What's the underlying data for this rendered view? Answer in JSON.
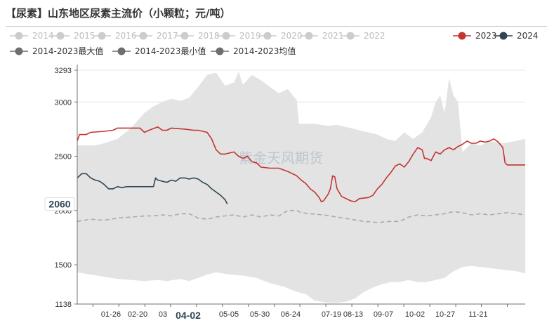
{
  "title": "【尿素】山东地区尿素主流价（小颗粒；元/吨）",
  "watermark": "紫金天风期货",
  "chart_data": {
    "type": "line",
    "title": "【尿素】山东地区尿素主流价（小颗粒；元/吨）",
    "ylim": [
      1138,
      3293
    ],
    "yticks": [
      1138,
      1500,
      2000,
      2500,
      3000,
      3293
    ],
    "xticks": [
      "01-26",
      "02-20",
      "03",
      "04-02",
      "05-05",
      "05-30",
      "06-24",
      "07-19",
      "08-13",
      "09-07",
      "10-02",
      "10-27",
      "11-21"
    ],
    "x_tick_pos": [
      0.035,
      0.093,
      0.151,
      0.208,
      0.266,
      0.324,
      0.382,
      0.44,
      0.497,
      0.555,
      0.613,
      0.671,
      0.729,
      0.787,
      0.845,
      0.902,
      0.96
    ],
    "highlight_tick": "04-02",
    "highlight_value": "2060",
    "legend": {
      "inactive_color": "#cccccc",
      "items": [
        {
          "label": "2014",
          "color": "#cccccc",
          "active": false
        },
        {
          "label": "2015",
          "color": "#cccccc",
          "active": false
        },
        {
          "label": "2016",
          "color": "#cccccc",
          "active": false
        },
        {
          "label": "2017",
          "color": "#cccccc",
          "active": false
        },
        {
          "label": "2018",
          "color": "#cccccc",
          "active": false
        },
        {
          "label": "2019",
          "color": "#cccccc",
          "active": false
        },
        {
          "label": "2020",
          "color": "#cccccc",
          "active": false
        },
        {
          "label": "2021",
          "color": "#cccccc",
          "active": false
        },
        {
          "label": "2022",
          "color": "#cccccc",
          "active": false
        },
        {
          "label": "2023",
          "color": "#c23531",
          "active": true
        },
        {
          "label": "2024",
          "color": "#2f4554",
          "active": true
        },
        {
          "label": "2014-2023最大值",
          "color": "#6e6e6e",
          "active": true
        },
        {
          "label": "2014-2023最小值",
          "color": "#6e6e6e",
          "active": true
        },
        {
          "label": "2014-2023均值",
          "color": "#6e6e6e",
          "active": true
        }
      ]
    },
    "band": {
      "fill": "#e3e3e3",
      "max": [
        [
          0,
          2600
        ],
        [
          0.04,
          2600
        ],
        [
          0.06,
          2620
        ],
        [
          0.09,
          2660
        ],
        [
          0.12,
          2760
        ],
        [
          0.15,
          2900
        ],
        [
          0.17,
          2960
        ],
        [
          0.19,
          3000
        ],
        [
          0.21,
          3030
        ],
        [
          0.23,
          3010
        ],
        [
          0.25,
          3040
        ],
        [
          0.27,
          3140
        ],
        [
          0.29,
          3250
        ],
        [
          0.31,
          3270
        ],
        [
          0.33,
          3150
        ],
        [
          0.35,
          3180
        ],
        [
          0.36,
          3280
        ],
        [
          0.37,
          3160
        ],
        [
          0.39,
          3250
        ],
        [
          0.41,
          3200
        ],
        [
          0.43,
          3140
        ],
        [
          0.45,
          3080
        ],
        [
          0.47,
          3120
        ],
        [
          0.485,
          3040
        ],
        [
          0.49,
          3020
        ],
        [
          0.495,
          2800
        ],
        [
          0.53,
          2800
        ],
        [
          0.56,
          2780
        ],
        [
          0.58,
          2790
        ],
        [
          0.61,
          2760
        ],
        [
          0.63,
          2740
        ],
        [
          0.65,
          2720
        ],
        [
          0.67,
          2700
        ],
        [
          0.69,
          2660
        ],
        [
          0.71,
          2640
        ],
        [
          0.73,
          2720
        ],
        [
          0.75,
          2660
        ],
        [
          0.77,
          2720
        ],
        [
          0.79,
          2860
        ],
        [
          0.8,
          3000
        ],
        [
          0.81,
          3060
        ],
        [
          0.82,
          2900
        ],
        [
          0.83,
          3220
        ],
        [
          0.84,
          3060
        ],
        [
          0.85,
          3000
        ],
        [
          0.86,
          2540
        ],
        [
          0.88,
          2620
        ],
        [
          0.9,
          2600
        ],
        [
          0.92,
          2640
        ],
        [
          0.95,
          2620
        ],
        [
          0.98,
          2640
        ],
        [
          1.0,
          2660
        ]
      ],
      "min": [
        [
          0,
          1430
        ],
        [
          0.03,
          1410
        ],
        [
          0.06,
          1390
        ],
        [
          0.09,
          1370
        ],
        [
          0.12,
          1360
        ],
        [
          0.15,
          1350
        ],
        [
          0.18,
          1360
        ],
        [
          0.2,
          1350
        ],
        [
          0.23,
          1370
        ],
        [
          0.25,
          1350
        ],
        [
          0.27,
          1380
        ],
        [
          0.29,
          1410
        ],
        [
          0.31,
          1430
        ],
        [
          0.34,
          1410
        ],
        [
          0.37,
          1400
        ],
        [
          0.4,
          1380
        ],
        [
          0.43,
          1330
        ],
        [
          0.46,
          1300
        ],
        [
          0.49,
          1250
        ],
        [
          0.51,
          1230
        ],
        [
          0.53,
          1170
        ],
        [
          0.56,
          1150
        ],
        [
          0.58,
          1150
        ],
        [
          0.6,
          1160
        ],
        [
          0.62,
          1190
        ],
        [
          0.64,
          1250
        ],
        [
          0.66,
          1290
        ],
        [
          0.68,
          1320
        ],
        [
          0.7,
          1340
        ],
        [
          0.72,
          1340
        ],
        [
          0.74,
          1360
        ],
        [
          0.76,
          1340
        ],
        [
          0.78,
          1340
        ],
        [
          0.8,
          1360
        ],
        [
          0.82,
          1380
        ],
        [
          0.84,
          1440
        ],
        [
          0.86,
          1480
        ],
        [
          0.88,
          1490
        ],
        [
          0.9,
          1480
        ],
        [
          0.92,
          1470
        ],
        [
          0.94,
          1460
        ],
        [
          0.96,
          1450
        ],
        [
          0.98,
          1440
        ],
        [
          1.0,
          1420
        ]
      ]
    },
    "series": [
      {
        "name": "2014-2023均值",
        "color": "#aaaaaa",
        "dashed": true,
        "values": [
          [
            0,
            1900
          ],
          [
            0.03,
            1920
          ],
          [
            0.06,
            1910
          ],
          [
            0.09,
            1930
          ],
          [
            0.12,
            1940
          ],
          [
            0.15,
            1950
          ],
          [
            0.17,
            1950
          ],
          [
            0.19,
            1960
          ],
          [
            0.21,
            1950
          ],
          [
            0.23,
            1970
          ],
          [
            0.25,
            1970
          ],
          [
            0.27,
            1930
          ],
          [
            0.29,
            1920
          ],
          [
            0.31,
            1940
          ],
          [
            0.33,
            1950
          ],
          [
            0.35,
            1960
          ],
          [
            0.37,
            1940
          ],
          [
            0.39,
            1960
          ],
          [
            0.41,
            1940
          ],
          [
            0.43,
            1960
          ],
          [
            0.45,
            1950
          ],
          [
            0.47,
            2000
          ],
          [
            0.49,
            2000
          ],
          [
            0.5,
            1980
          ],
          [
            0.52,
            1970
          ],
          [
            0.55,
            1960
          ],
          [
            0.58,
            1940
          ],
          [
            0.61,
            1920
          ],
          [
            0.64,
            1900
          ],
          [
            0.67,
            1890
          ],
          [
            0.7,
            1900
          ],
          [
            0.72,
            1900
          ],
          [
            0.74,
            1940
          ],
          [
            0.76,
            1960
          ],
          [
            0.78,
            1950
          ],
          [
            0.8,
            1960
          ],
          [
            0.82,
            1970
          ],
          [
            0.84,
            1990
          ],
          [
            0.86,
            1980
          ],
          [
            0.88,
            1960
          ],
          [
            0.9,
            1970
          ],
          [
            0.92,
            1960
          ],
          [
            0.94,
            1970
          ],
          [
            0.96,
            1980
          ],
          [
            0.98,
            1970
          ],
          [
            1.0,
            1960
          ]
        ]
      },
      {
        "name": "2023",
        "color": "#c23531",
        "values": [
          [
            0,
            2640
          ],
          [
            0.005,
            2700
          ],
          [
            0.02,
            2700
          ],
          [
            0.03,
            2720
          ],
          [
            0.06,
            2730
          ],
          [
            0.08,
            2740
          ],
          [
            0.09,
            2760
          ],
          [
            0.13,
            2760
          ],
          [
            0.14,
            2760
          ],
          [
            0.15,
            2720
          ],
          [
            0.16,
            2740
          ],
          [
            0.18,
            2770
          ],
          [
            0.19,
            2740
          ],
          [
            0.2,
            2740
          ],
          [
            0.21,
            2760
          ],
          [
            0.24,
            2750
          ],
          [
            0.26,
            2740
          ],
          [
            0.27,
            2740
          ],
          [
            0.29,
            2720
          ],
          [
            0.3,
            2660
          ],
          [
            0.31,
            2560
          ],
          [
            0.32,
            2520
          ],
          [
            0.33,
            2520
          ],
          [
            0.35,
            2540
          ],
          [
            0.36,
            2500
          ],
          [
            0.37,
            2480
          ],
          [
            0.38,
            2500
          ],
          [
            0.39,
            2450
          ],
          [
            0.4,
            2440
          ],
          [
            0.41,
            2400
          ],
          [
            0.43,
            2390
          ],
          [
            0.45,
            2390
          ],
          [
            0.47,
            2360
          ],
          [
            0.49,
            2320
          ],
          [
            0.5,
            2280
          ],
          [
            0.51,
            2250
          ],
          [
            0.52,
            2200
          ],
          [
            0.53,
            2170
          ],
          [
            0.54,
            2120
          ],
          [
            0.545,
            2080
          ],
          [
            0.55,
            2090
          ],
          [
            0.56,
            2150
          ],
          [
            0.565,
            2200
          ],
          [
            0.57,
            2320
          ],
          [
            0.575,
            2310
          ],
          [
            0.58,
            2200
          ],
          [
            0.59,
            2130
          ],
          [
            0.6,
            2110
          ],
          [
            0.61,
            2090
          ],
          [
            0.62,
            2080
          ],
          [
            0.63,
            2110
          ],
          [
            0.65,
            2120
          ],
          [
            0.66,
            2140
          ],
          [
            0.67,
            2200
          ],
          [
            0.68,
            2240
          ],
          [
            0.69,
            2300
          ],
          [
            0.7,
            2350
          ],
          [
            0.71,
            2410
          ],
          [
            0.72,
            2430
          ],
          [
            0.73,
            2400
          ],
          [
            0.74,
            2450
          ],
          [
            0.75,
            2520
          ],
          [
            0.76,
            2580
          ],
          [
            0.77,
            2560
          ],
          [
            0.775,
            2480
          ],
          [
            0.78,
            2480
          ],
          [
            0.79,
            2460
          ],
          [
            0.8,
            2540
          ],
          [
            0.81,
            2520
          ],
          [
            0.82,
            2560
          ],
          [
            0.83,
            2580
          ],
          [
            0.84,
            2560
          ],
          [
            0.85,
            2590
          ],
          [
            0.86,
            2610
          ],
          [
            0.87,
            2640
          ],
          [
            0.88,
            2620
          ],
          [
            0.89,
            2620
          ],
          [
            0.9,
            2640
          ],
          [
            0.91,
            2630
          ],
          [
            0.92,
            2640
          ],
          [
            0.93,
            2660
          ],
          [
            0.94,
            2630
          ],
          [
            0.95,
            2580
          ],
          [
            0.955,
            2440
          ],
          [
            0.96,
            2420
          ],
          [
            0.98,
            2420
          ],
          [
            1.0,
            2420
          ]
        ]
      },
      {
        "name": "2024",
        "color": "#2f4554",
        "values": [
          [
            0,
            2300
          ],
          [
            0.005,
            2320
          ],
          [
            0.01,
            2340
          ],
          [
            0.02,
            2340
          ],
          [
            0.03,
            2300
          ],
          [
            0.04,
            2280
          ],
          [
            0.05,
            2270
          ],
          [
            0.06,
            2240
          ],
          [
            0.07,
            2200
          ],
          [
            0.08,
            2200
          ],
          [
            0.09,
            2220
          ],
          [
            0.1,
            2210
          ],
          [
            0.11,
            2220
          ],
          [
            0.13,
            2220
          ],
          [
            0.15,
            2220
          ],
          [
            0.16,
            2220
          ],
          [
            0.17,
            2220
          ],
          [
            0.175,
            2300
          ],
          [
            0.18,
            2280
          ],
          [
            0.19,
            2270
          ],
          [
            0.2,
            2260
          ],
          [
            0.21,
            2280
          ],
          [
            0.22,
            2270
          ],
          [
            0.23,
            2300
          ],
          [
            0.24,
            2300
          ],
          [
            0.25,
            2290
          ],
          [
            0.26,
            2300
          ],
          [
            0.27,
            2290
          ],
          [
            0.28,
            2260
          ],
          [
            0.29,
            2240
          ],
          [
            0.3,
            2200
          ],
          [
            0.31,
            2170
          ],
          [
            0.32,
            2140
          ],
          [
            0.33,
            2100
          ],
          [
            0.335,
            2060
          ]
        ]
      }
    ]
  }
}
